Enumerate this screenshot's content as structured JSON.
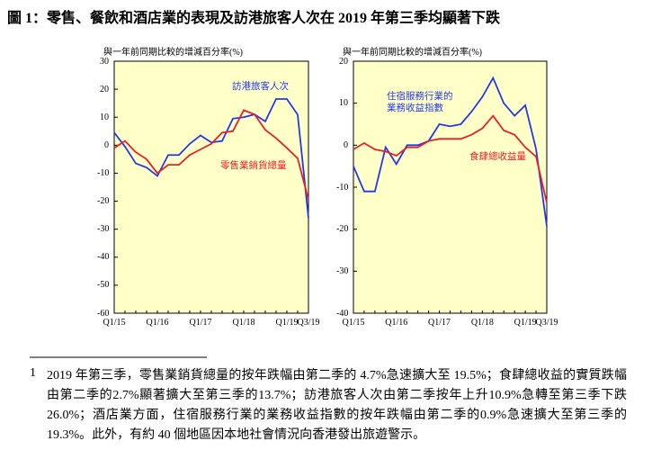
{
  "title": "圖 1：零售、餐飲和酒店業的表現及訪港旅客人次在 2019 年第三季均顯著下跌",
  "chart_data": [
    {
      "type": "line",
      "y_label": "與一年前同期比較的增減百分率(%)",
      "categories": [
        "Q1/15",
        null,
        null,
        null,
        "Q1/16",
        null,
        null,
        null,
        "Q1/17",
        null,
        null,
        null,
        "Q1/18",
        null,
        null,
        null,
        "Q1/19",
        null,
        "Q3/19"
      ],
      "ylim": [
        -60,
        30
      ],
      "yticks": [
        -60,
        -50,
        -40,
        -30,
        -20,
        -10,
        0,
        10,
        20,
        30
      ],
      "series": [
        {
          "name": "訪港旅客人次",
          "color": "#2438e8",
          "values": [
            4.5,
            -0.5,
            -6.5,
            -8,
            -11,
            -3.5,
            -3.5,
            0.5,
            3.5,
            1,
            1.5,
            9.5,
            10,
            11,
            8.5,
            16.5,
            16.5,
            10.9,
            -26.0
          ]
        },
        {
          "name": "零售業銷貨總量",
          "color": "#e8202a",
          "values": [
            -1,
            1.5,
            -2.5,
            -5,
            -10,
            -7,
            -7,
            -3.5,
            -1.5,
            0.5,
            4.5,
            5,
            12.5,
            11,
            5.5,
            2.5,
            -1,
            -4.7,
            -19.5
          ]
        }
      ]
    },
    {
      "type": "line",
      "y_label": "與一年前同期比較的增減百分率(%)",
      "categories": [
        "Q1/15",
        null,
        null,
        null,
        "Q1/16",
        null,
        null,
        null,
        "Q1/17",
        null,
        null,
        null,
        "Q1/18",
        null,
        null,
        null,
        "Q1/19",
        null,
        "Q3/19"
      ],
      "ylim": [
        -40,
        20
      ],
      "yticks": [
        -40,
        -30,
        -20,
        -10,
        0,
        10,
        20
      ],
      "series": [
        {
          "name": "住宿服務行業的\n業務收益指數",
          "color": "#2438e8",
          "values": [
            -5,
            -11,
            -11,
            -0.5,
            -4.5,
            0,
            0,
            1,
            5,
            4.5,
            5,
            8,
            11.5,
            16,
            10,
            7,
            9.5,
            -0.9,
            -19.3
          ]
        },
        {
          "name": "食肆總收益量",
          "color": "#e8202a",
          "values": [
            -1,
            0.5,
            -1,
            -1.5,
            -2.5,
            -0.5,
            -0.5,
            1,
            1.5,
            1.5,
            1.5,
            2.5,
            4,
            7,
            3.5,
            2.5,
            -0.5,
            -2.7,
            -13.7
          ]
        }
      ]
    }
  ],
  "footnote": {
    "number": "1",
    "text": "2019 年第三季，零售業銷貨總量的按年跌幅由第二季的 4.7%急速擴大至 19.5%；食肆總收益的實質跌幅由第二季的2.7%顯著擴大至第三季的13.7%；訪港旅客人次由第二季按年上升10.9%急轉至第三季下跌 26.0%；酒店業方面，住宿服務行業的業務收益指數的按年跌幅由第二季的0.9%急速擴大至第三季的 19.3%。此外，有約 40 個地區因本地社會情況向香港發出旅遊警示。"
  }
}
